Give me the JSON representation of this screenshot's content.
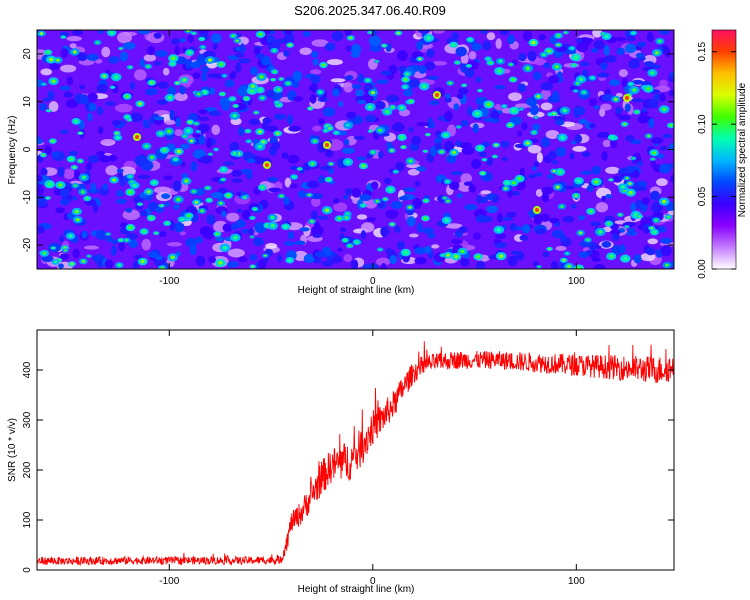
{
  "title": "S206.2025.347.06.40.R09",
  "chart_data": [
    {
      "type": "heatmap",
      "title": "",
      "xlabel": "Height of straight line (km)",
      "ylabel": "Frequency (Hz)",
      "xlim": [
        -165,
        148
      ],
      "ylim": [
        -25,
        25
      ],
      "xticks": [
        -100,
        0,
        100
      ],
      "yticks": [
        -20,
        -10,
        0,
        10,
        20
      ],
      "colorbar": {
        "label": "Normalized spectral amplitude",
        "range": [
          0,
          0.165
        ],
        "ticks": [
          "0.00",
          "0.05",
          "0.10",
          "0.15"
        ],
        "colors": [
          "#ffffff",
          "#c47cff",
          "#8a00ff",
          "#3a00ff",
          "#0048ff",
          "#00b8ff",
          "#00ffb0",
          "#40ff00",
          "#d8ff00",
          "#ffc000",
          "#ff4000",
          "#ff1060"
        ]
      },
      "description_values": "noise field mostly 0.02-0.06 with sparse peaks up to ~0.16"
    },
    {
      "type": "line",
      "title": "",
      "xlabel": "Height of straight line (km)",
      "ylabel": "SNR (10 * v/v)",
      "xlim": [
        -165,
        148
      ],
      "ylim": [
        0,
        480
      ],
      "xticks": [
        -100,
        0,
        100
      ],
      "yticks": [
        0,
        100,
        200,
        300,
        400
      ],
      "series": [
        {
          "name": "SNR",
          "color": "#ff0000",
          "x": [
            -165,
            -150,
            -120,
            -90,
            -60,
            -45,
            -42,
            -40,
            -35,
            -30,
            -25,
            -20,
            -15,
            -10,
            -5,
            0,
            5,
            10,
            15,
            20,
            25,
            30,
            40,
            60,
            80,
            100,
            120,
            140,
            148
          ],
          "y": [
            18,
            18,
            19,
            19,
            19,
            20,
            60,
            95,
            115,
            150,
            185,
            210,
            215,
            220,
            250,
            285,
            305,
            330,
            365,
            395,
            410,
            415,
            420,
            420,
            415,
            410,
            405,
            400,
            405
          ],
          "noise": [
            8,
            8,
            8,
            8,
            8,
            8,
            20,
            20,
            25,
            30,
            35,
            35,
            40,
            40,
            40,
            35,
            30,
            28,
            25,
            22,
            20,
            18,
            18,
            18,
            20,
            22,
            25,
            28,
            28
          ]
        }
      ]
    }
  ]
}
